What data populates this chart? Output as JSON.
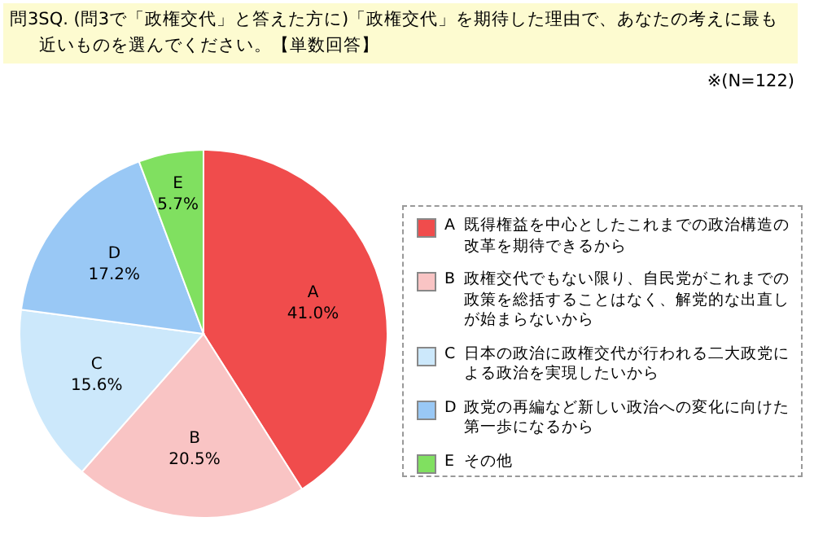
{
  "chart_data": {
    "type": "pie",
    "title": "問3SQ. (問3で「政権交代」と答えた方に)「政権交代」を期待した理由で、あなたの考えに最も近いものを選んでください。【単数回答】",
    "categories": [
      "A",
      "B",
      "C",
      "D",
      "E"
    ],
    "values": [
      41.0,
      20.5,
      15.6,
      17.2,
      5.7
    ],
    "value_labels": [
      "41.0%",
      "20.5%",
      "15.6%",
      "17.2%",
      "5.7%"
    ],
    "colors": [
      "#f04c4c",
      "#f9c4c4",
      "#cce8fb",
      "#99c8f5",
      "#80e060"
    ],
    "legend": "right",
    "annotations": [
      "既得権益を中心としたこれまでの政治構造の改革を期待できるから",
      "政権交代でもない限り、自民党がこれまでの政策を総括することはなく、解党的な出直しが始まらないから",
      "日本の政治に政権交代が行われる二大政党による政治を実現したいから",
      "政党の再編など新しい政治への変化に向けた第一歩になるから",
      "その他",
      "※(N=122)"
    ]
  }
}
